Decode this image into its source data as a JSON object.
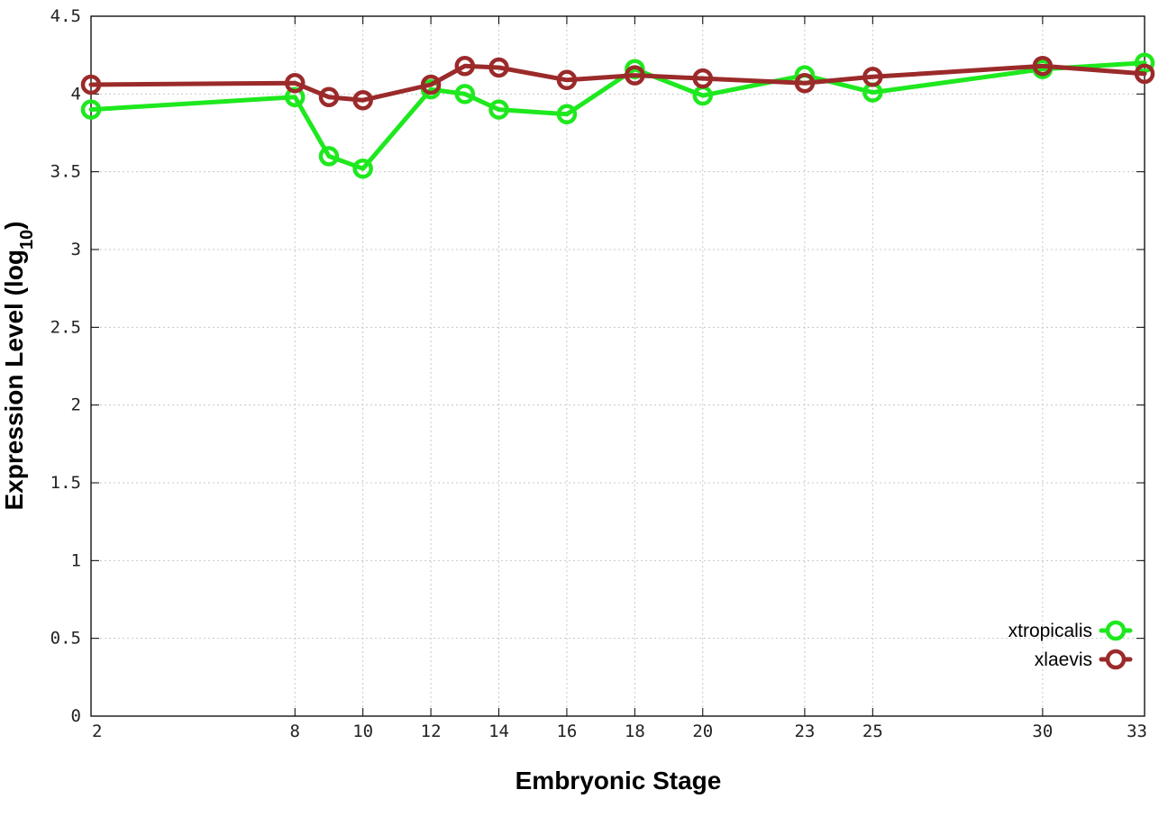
{
  "chart_data": {
    "type": "line",
    "xlabel": "Embryonic Stage",
    "ylabel": "Expression Level (log",
    "ylabel_subscript": "10",
    "ylabel_close": ")",
    "ylim": [
      0,
      4.5
    ],
    "y_ticks": [
      {
        "value": 0,
        "label": "0"
      },
      {
        "value": 0.5,
        "label": "0.5"
      },
      {
        "value": 1,
        "label": "1"
      },
      {
        "value": 1.5,
        "label": "1.5"
      },
      {
        "value": 2,
        "label": "2"
      },
      {
        "value": 2.5,
        "label": "2.5"
      },
      {
        "value": 3,
        "label": "3"
      },
      {
        "value": 3.5,
        "label": "3.5"
      },
      {
        "value": 4,
        "label": "4"
      },
      {
        "value": 4.5,
        "label": "4.5"
      }
    ],
    "x": [
      2,
      8,
      9,
      10,
      12,
      13,
      14,
      16,
      18,
      20,
      23,
      25,
      30,
      33
    ],
    "xlim": [
      2,
      33
    ],
    "x_ticks": [
      {
        "value": 2,
        "label": "2"
      },
      {
        "value": 8,
        "label": "8"
      },
      {
        "value": 10,
        "label": "10"
      },
      {
        "value": 12,
        "label": "12"
      },
      {
        "value": 14,
        "label": "14"
      },
      {
        "value": 16,
        "label": "16"
      },
      {
        "value": 18,
        "label": "18"
      },
      {
        "value": 20,
        "label": "20"
      },
      {
        "value": 23,
        "label": "23"
      },
      {
        "value": 25,
        "label": "25"
      },
      {
        "value": 30,
        "label": "30"
      },
      {
        "value": 33,
        "label": "33"
      }
    ],
    "grid": true,
    "legend_position": "bottom-right",
    "series": [
      {
        "name": "xtropicalis",
        "color": "#1ee81e",
        "values": [
          3.9,
          3.98,
          3.6,
          3.52,
          4.03,
          4.0,
          3.9,
          3.87,
          4.16,
          3.99,
          4.12,
          4.01,
          4.16,
          4.2
        ]
      },
      {
        "name": "xlaevis",
        "color": "#9b2a2a",
        "values": [
          4.06,
          4.07,
          3.98,
          3.96,
          4.06,
          4.18,
          4.17,
          4.09,
          4.12,
          4.1,
          4.07,
          4.11,
          4.18,
          4.13
        ]
      }
    ]
  }
}
